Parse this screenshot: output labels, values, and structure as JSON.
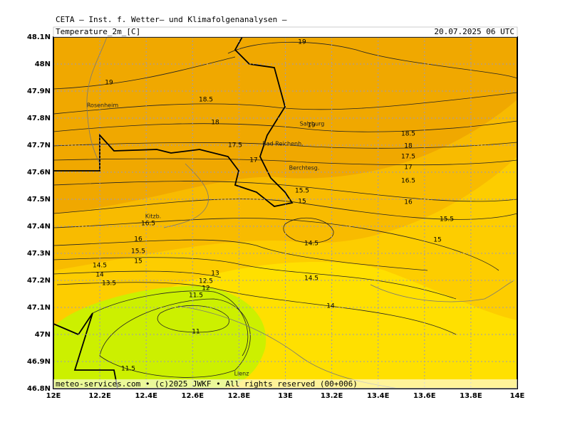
{
  "header": {
    "title": "CETA — Inst. f. Wetter— und Klimafolgenanalysen —",
    "variable": "Temperature_2m_[C]",
    "datetime": "20.07.2025  06 UTC"
  },
  "footer": "meteo-services.com • (c)2025 JWKF • All rights reserved (00+006)",
  "lat_labels": [
    "48.1N",
    "48N",
    "47.9N",
    "47.8N",
    "47.7N",
    "47.6N",
    "47.5N",
    "47.4N",
    "47.3N",
    "47.2N",
    "47.1N",
    "47N",
    "46.9N",
    "46.8N"
  ],
  "lon_labels": [
    "12E",
    "12.2E",
    "12.4E",
    "12.6E",
    "12.8E",
    "13E",
    "13.2E",
    "13.4E",
    "13.6E",
    "13.8E",
    "14E"
  ],
  "contour_labels": [
    "19",
    "19",
    "18.5",
    "18",
    "19",
    "17.5",
    "17",
    "15.5",
    "15",
    "16.5",
    "16",
    "15.5",
    "15",
    "14.5",
    "14",
    "13.5",
    "13",
    "12.5",
    "12",
    "11.5",
    "11",
    "11.5",
    "14.5",
    "14.5",
    "14",
    "18.5",
    "18",
    "17.5",
    "17",
    "16.5",
    "16",
    "15.5",
    "15"
  ],
  "places": [
    "Rosenheim",
    "Salzburg",
    "Bad Reichenh.",
    "Berchtesg.",
    "Kitzb.",
    "Lienz"
  ]
}
